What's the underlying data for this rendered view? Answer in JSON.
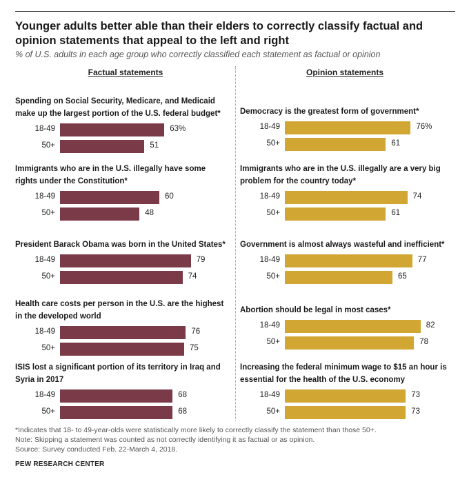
{
  "title": "Younger adults better able than their elders to correctly classify factual and opinion statements that appeal to the left and right",
  "subtitle": "% of U.S. adults in each age group who correctly classified each statement as factual or opinion",
  "colors": {
    "factual": "#7b3a48",
    "opinion": "#d2a632"
  },
  "chart_data": [
    {
      "type": "bar",
      "title": "Factual statements",
      "series_names": [
        "18-49",
        "50+"
      ],
      "items": [
        {
          "label": "Spending on Social Security, Medicare, and Medicaid make up the largest portion of the U.S. federal budget*",
          "values": [
            63,
            51
          ],
          "value_labels": [
            "63%",
            "51"
          ]
        },
        {
          "label": "Immigrants who are in the U.S. illegally have some rights under the Constitution*",
          "values": [
            60,
            48
          ],
          "value_labels": [
            "60",
            "48"
          ]
        },
        {
          "label": "President Barack Obama was born in the United States*",
          "values": [
            79,
            74
          ],
          "value_labels": [
            "79",
            "74"
          ]
        },
        {
          "label": "Health care costs per person in the U.S. are the highest in the developed world",
          "values": [
            76,
            75
          ],
          "value_labels": [
            "76",
            "75"
          ]
        },
        {
          "label": "ISIS lost a significant portion of its territory in Iraq and Syria in 2017",
          "values": [
            68,
            68
          ],
          "value_labels": [
            "68",
            "68"
          ]
        }
      ]
    },
    {
      "type": "bar",
      "title": "Opinion statements",
      "series_names": [
        "18-49",
        "50+"
      ],
      "items": [
        {
          "label": "Democracy is the greatest form of government*",
          "values": [
            76,
            61
          ],
          "value_labels": [
            "76%",
            "61"
          ]
        },
        {
          "label": "Immigrants who are in the U.S. illegally are a very big problem for the country today*",
          "values": [
            74,
            61
          ],
          "value_labels": [
            "74",
            "61"
          ]
        },
        {
          "label": "Government is almost always wasteful and inefficient*",
          "values": [
            77,
            65
          ],
          "value_labels": [
            "77",
            "65"
          ]
        },
        {
          "label": "Abortion should be legal in most cases*",
          "values": [
            82,
            78
          ],
          "value_labels": [
            "82",
            "78"
          ]
        },
        {
          "label": "Increasing the federal minimum wage to $15 an hour is essential for the health of the U.S. economy",
          "values": [
            73,
            73
          ],
          "value_labels": [
            "73",
            "73"
          ]
        }
      ]
    }
  ],
  "notes": [
    "*Indicates that 18- to 49-year-olds were statistically more likely to correctly classify the statement than those 50+.",
    "Note: Skipping a statement was counted as not correctly identifying it as factual or as opinion.",
    "Source: Survey conducted Feb. 22-March 4, 2018."
  ],
  "brand": "PEW RESEARCH CENTER"
}
